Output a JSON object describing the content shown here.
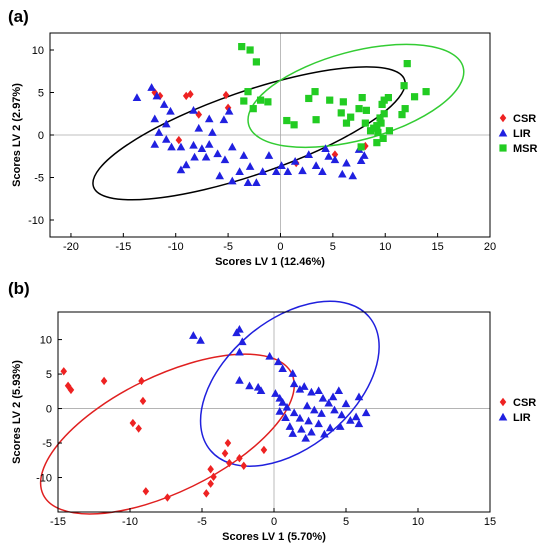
{
  "colors": {
    "CSR": "#ee2222",
    "LIR": "#2020e0",
    "MSR": "#22cc22",
    "ellipse_a_LIR": "#000000",
    "ellipse_a_MSR": "#33cc33",
    "ellipse_b_CSR": "#e02020",
    "ellipse_b_LIR": "#2020dd",
    "zero_lines": "#aaaaaa"
  },
  "chart_data": [
    {
      "panel": "(a)",
      "type": "scatter",
      "xlabel": "Scores LV 1 (12.46%)",
      "ylabel": "Scores LV 2 (2.97%)",
      "xlim": [
        -22,
        20
      ],
      "ylim": [
        -12,
        12
      ],
      "xticks": [
        -20,
        -15,
        -10,
        -5,
        0,
        5,
        10,
        15,
        20
      ],
      "yticks": [
        -10,
        -5,
        0,
        5,
        10
      ],
      "zero_lines": true,
      "legend": {
        "position": "right",
        "entries": [
          "CSR",
          "LIR",
          "MSR"
        ]
      },
      "series": [
        {
          "name": "CSR",
          "marker": "diamond",
          "points": [
            [
              -12,
              5
            ],
            [
              -11.5,
              4.6
            ],
            [
              -9,
              4.6
            ],
            [
              -8.6,
              4.8
            ],
            [
              -7.8,
              2.4
            ],
            [
              -5.2,
              4.7
            ],
            [
              -5,
              3.2
            ],
            [
              -9.7,
              -0.6
            ],
            [
              1.5,
              -3.3
            ],
            [
              5.2,
              -2.3
            ],
            [
              8.1,
              -1.3
            ]
          ]
        },
        {
          "name": "LIR",
          "marker": "triangle",
          "points": [
            [
              -13.7,
              4.4
            ],
            [
              -12.3,
              5.6
            ],
            [
              -11.8,
              4.6
            ],
            [
              -11.1,
              3.6
            ],
            [
              -10.5,
              2.8
            ],
            [
              -12,
              1.9
            ],
            [
              -10.9,
              1.3
            ],
            [
              -11.6,
              0.3
            ],
            [
              -10.9,
              -0.5
            ],
            [
              -12,
              -1.1
            ],
            [
              -10.4,
              -1.4
            ],
            [
              -9.5,
              -1.4
            ],
            [
              -8.3,
              2.9
            ],
            [
              -7.8,
              0.8
            ],
            [
              -6.8,
              1.9
            ],
            [
              -6.5,
              0.3
            ],
            [
              -5.4,
              1.8
            ],
            [
              -4.9,
              2.8
            ],
            [
              -6.8,
              -1.1
            ],
            [
              -7.1,
              -2.6
            ],
            [
              -8.2,
              -2.6
            ],
            [
              -9,
              -3.5
            ],
            [
              -9.5,
              -4.1
            ],
            [
              -8.3,
              -1.2
            ],
            [
              -7.5,
              -1.6
            ],
            [
              -6,
              -2.2
            ],
            [
              -5.3,
              -2.9
            ],
            [
              -4.6,
              -1.4
            ],
            [
              -3.5,
              -2.4
            ],
            [
              -2.9,
              -3.7
            ],
            [
              -3.9,
              -4.3
            ],
            [
              -4.6,
              -5.4
            ],
            [
              -3.1,
              -5.6
            ],
            [
              -2.3,
              -5.6
            ],
            [
              -1.7,
              -4.3
            ],
            [
              -1.1,
              -2.4
            ],
            [
              0.1,
              -3.6
            ],
            [
              0.7,
              -4.3
            ],
            [
              1.4,
              -3.1
            ],
            [
              2.1,
              -4.2
            ],
            [
              2.7,
              -2.3
            ],
            [
              3.4,
              -3.6
            ],
            [
              4,
              -4.3
            ],
            [
              4.6,
              -2.5
            ],
            [
              5.2,
              -2.9
            ],
            [
              5.9,
              -4.6
            ],
            [
              6.3,
              -3.3
            ],
            [
              6.9,
              -4.8
            ],
            [
              7.7,
              -3
            ],
            [
              7.5,
              -1.7
            ],
            [
              8,
              -2.4
            ],
            [
              4.3,
              -1.6
            ],
            [
              -0.4,
              -4.3
            ],
            [
              -5.8,
              -4.8
            ]
          ]
        },
        {
          "name": "MSR",
          "marker": "square",
          "points": [
            [
              -3.7,
              10.4
            ],
            [
              -2.9,
              10
            ],
            [
              -2.3,
              8.6
            ],
            [
              -3.1,
              5.1
            ],
            [
              -2.6,
              3.1
            ],
            [
              -1.9,
              4.1
            ],
            [
              -1.2,
              3.9
            ],
            [
              -3.5,
              4
            ],
            [
              0.6,
              1.7
            ],
            [
              1.3,
              1.2
            ],
            [
              2.7,
              4.3
            ],
            [
              3.3,
              5.1
            ],
            [
              3.4,
              1.8
            ],
            [
              4.7,
              4.1
            ],
            [
              6,
              3.9
            ],
            [
              5.8,
              2.6
            ],
            [
              6.3,
              1.4
            ],
            [
              6.7,
              2.1
            ],
            [
              7.5,
              3.1
            ],
            [
              7.8,
              4.4
            ],
            [
              8.1,
              1.4
            ],
            [
              8.2,
              2.9
            ],
            [
              8.9,
              0.8
            ],
            [
              9.2,
              1.1
            ],
            [
              9.5,
              2
            ],
            [
              9.6,
              1.4
            ],
            [
              9.9,
              2.5
            ],
            [
              9.7,
              3.6
            ],
            [
              9.9,
              4.1
            ],
            [
              10.3,
              4.4
            ],
            [
              9.3,
              0.3
            ],
            [
              9.8,
              -0.4
            ],
            [
              10.4,
              0.5
            ],
            [
              11.6,
              2.4
            ],
            [
              11.9,
              3.1
            ],
            [
              11.8,
              5.8
            ],
            [
              12.1,
              8.4
            ],
            [
              12.8,
              4.5
            ],
            [
              13.9,
              5.1
            ],
            [
              7.7,
              -1.4
            ],
            [
              8.6,
              0.5
            ],
            [
              9.2,
              -0.9
            ]
          ]
        }
      ],
      "ellipses": [
        {
          "group": "LIR",
          "center": [
            -3,
            0.2
          ],
          "rx": 15.7,
          "ry": 4.9,
          "angle_deg": -19
        },
        {
          "group": "MSR",
          "center": [
            7.2,
            4.6
          ],
          "rx": 10.6,
          "ry": 5.2,
          "angle_deg": -15
        }
      ]
    },
    {
      "panel": "(b)",
      "type": "scatter",
      "xlabel": "Scores  LV 1 (5.70%)",
      "ylabel": "Scores LV 2 (5.93%)",
      "xlim": [
        -15,
        15
      ],
      "ylim": [
        -15,
        14
      ],
      "xticks": [
        -15,
        -10,
        -5,
        0,
        5,
        10,
        15
      ],
      "yticks": [
        -10,
        -5,
        0,
        5,
        10
      ],
      "zero_lines": true,
      "legend": {
        "position": "right",
        "entries": [
          "CSR",
          "LIR"
        ]
      },
      "series": [
        {
          "name": "CSR",
          "marker": "diamond",
          "points": [
            [
              -14.6,
              5.4
            ],
            [
              -14.3,
              3.3
            ],
            [
              -14.1,
              2.7
            ],
            [
              -11.8,
              4
            ],
            [
              -9.2,
              4
            ],
            [
              -9.1,
              1.1
            ],
            [
              -9.8,
              -2.1
            ],
            [
              -9.4,
              -2.9
            ],
            [
              -8.9,
              -12
            ],
            [
              -7.4,
              -12.9
            ],
            [
              -4.7,
              -12.3
            ],
            [
              -4.4,
              -10.9
            ],
            [
              -4.2,
              -9.9
            ],
            [
              -4.4,
              -8.8
            ],
            [
              -3.4,
              -6.5
            ],
            [
              -3.1,
              -7.9
            ],
            [
              -2.4,
              -7.2
            ],
            [
              -2.1,
              -8.3
            ],
            [
              -3.2,
              -5
            ],
            [
              -0.7,
              -6
            ]
          ]
        },
        {
          "name": "LIR",
          "marker": "triangle",
          "points": [
            [
              -5.6,
              10.6
            ],
            [
              -5.1,
              9.9
            ],
            [
              -2.6,
              11
            ],
            [
              -2.4,
              11.5
            ],
            [
              -2.2,
              9.7
            ],
            [
              -2.4,
              8.2
            ],
            [
              -0.3,
              7.6
            ],
            [
              0.3,
              6.8
            ],
            [
              0.6,
              5.8
            ],
            [
              1.3,
              5.1
            ],
            [
              -2.4,
              4.1
            ],
            [
              -1.7,
              3.3
            ],
            [
              -1.1,
              3.1
            ],
            [
              -0.9,
              2.6
            ],
            [
              0.1,
              2.2
            ],
            [
              0.4,
              1.5
            ],
            [
              0.6,
              0.9
            ],
            [
              1.4,
              3.6
            ],
            [
              1.8,
              2.8
            ],
            [
              2.1,
              3.2
            ],
            [
              2.6,
              2.4
            ],
            [
              3.1,
              2.6
            ],
            [
              3.4,
              1.5
            ],
            [
              3.8,
              0.8
            ],
            [
              2.3,
              0.4
            ],
            [
              2.8,
              -0.2
            ],
            [
              3.3,
              -0.7
            ],
            [
              4.2,
              -0.2
            ],
            [
              4.7,
              -0.9
            ],
            [
              5.3,
              -1.7
            ],
            [
              5.7,
              -1.2
            ],
            [
              5.9,
              -2.2
            ],
            [
              4.6,
              -2.6
            ],
            [
              3.9,
              -2.8
            ],
            [
              3.1,
              -2.2
            ],
            [
              2.4,
              -1.8
            ],
            [
              1.8,
              -1.4
            ],
            [
              1.4,
              -0.6
            ],
            [
              0.8,
              -1.3
            ],
            [
              0.4,
              -0.4
            ],
            [
              1.1,
              -2.6
            ],
            [
              1.9,
              -3
            ],
            [
              2.6,
              -3.4
            ],
            [
              1.3,
              -3.6
            ],
            [
              2.2,
              -4.3
            ],
            [
              4.1,
              1.7
            ],
            [
              5,
              0.7
            ],
            [
              3.5,
              -3.7
            ],
            [
              0.9,
              0.2
            ],
            [
              5.9,
              1.7
            ],
            [
              4.5,
              2.6
            ],
            [
              6.4,
              -0.6
            ]
          ]
        }
      ],
      "ellipses": [
        {
          "group": "CSR",
          "center": [
            -7.4,
            -3.7
          ],
          "rx": 9.6,
          "ry": 8.4,
          "angle_deg": -26
        },
        {
          "group": "LIR",
          "center": [
            1.1,
            3.6
          ],
          "rx": 7.2,
          "ry": 9.2,
          "angle_deg": -40
        }
      ]
    }
  ]
}
